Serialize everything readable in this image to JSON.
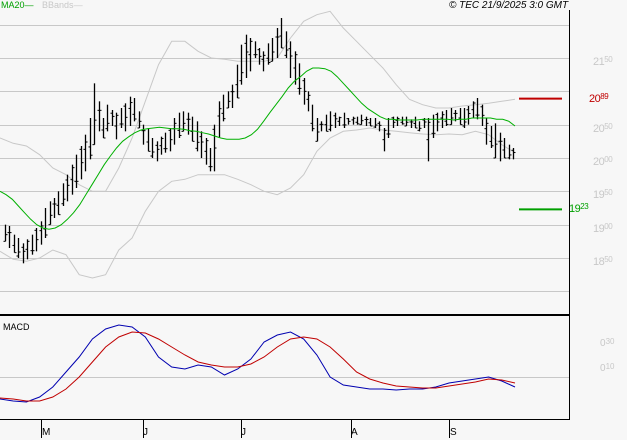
{
  "legend": {
    "ma_label": "MA20",
    "ma_dash": "—",
    "bb_label": "BBands",
    "bb_dash": "—"
  },
  "copyright": "© TEC 21/9/2025 3:0 GMT",
  "colors": {
    "ma": "#00b000",
    "bbands": "#c8c8c8",
    "bars": "#000000",
    "resistance": "#c00000",
    "support": "#00a000",
    "macd": "#0000b0",
    "signal": "#c00000",
    "grid": "#c8c8c8",
    "background": "#f7f7f7"
  },
  "price_axis": {
    "labels": [
      {
        "big": "21",
        "small": "50",
        "value": 2150
      },
      {
        "big": "20",
        "small": "50",
        "value": 2050
      },
      {
        "big": "20",
        "small": "00",
        "value": 2000
      },
      {
        "big": "19",
        "small": "50",
        "value": 1950
      },
      {
        "big": "19",
        "small": "00",
        "value": 1900
      },
      {
        "big": "18",
        "small": "50",
        "value": 1850
      }
    ]
  },
  "levels": {
    "resistance": {
      "big": "20",
      "small": "89",
      "value": 2089
    },
    "support": {
      "big": "19",
      "small": "23",
      "value": 1923
    }
  },
  "macd_panel": {
    "title": "MACD",
    "labels": [
      {
        "big": "0",
        "small": "30"
      },
      {
        "big": "0",
        "small": "10"
      }
    ]
  },
  "x_axis": {
    "months": [
      "M",
      "J",
      "J",
      "A",
      "S"
    ]
  },
  "chart_data": [
    {
      "type": "ohlc",
      "title": "",
      "series_names": [
        "Price",
        "MA20",
        "BBands"
      ],
      "ylim": [
        1800,
        2200
      ],
      "y_ticks": [
        1850,
        1900,
        1950,
        2000,
        2050,
        2100,
        2150
      ],
      "grid": true,
      "legend_position": "top-left",
      "x_ticks": [
        "M",
        "J",
        "J",
        "A",
        "S"
      ],
      "annotations": [
        {
          "label": "2089",
          "type": "resistance",
          "value": 2089
        },
        {
          "label": "1923",
          "type": "support",
          "value": 1923
        }
      ],
      "bars_high_low": [
        [
          1900,
          1875
        ],
        [
          1898,
          1865
        ],
        [
          1885,
          1858
        ],
        [
          1880,
          1850
        ],
        [
          1872,
          1842
        ],
        [
          1878,
          1848
        ],
        [
          1885,
          1855
        ],
        [
          1895,
          1860
        ],
        [
          1905,
          1870
        ],
        [
          1925,
          1880
        ],
        [
          1935,
          1900
        ],
        [
          1940,
          1910
        ],
        [
          1950,
          1915
        ],
        [
          1962,
          1928
        ],
        [
          1975,
          1935
        ],
        [
          1990,
          1945
        ],
        [
          2005,
          1955
        ],
        [
          2018,
          1968
        ],
        [
          2035,
          1980
        ],
        [
          2060,
          1998
        ],
        [
          2112,
          2020
        ],
        [
          2085,
          2040
        ],
        [
          2060,
          2030
        ],
        [
          2080,
          2040
        ],
        [
          2072,
          2048
        ],
        [
          2068,
          2028
        ],
        [
          2075,
          2045
        ],
        [
          2082,
          2040
        ],
        [
          2092,
          2048
        ],
        [
          2090,
          2055
        ],
        [
          2070,
          2045
        ],
        [
          2050,
          2020
        ],
        [
          2045,
          2010
        ],
        [
          2030,
          2000
        ],
        [
          2025,
          1995
        ],
        [
          2032,
          2005
        ],
        [
          2038,
          2008
        ],
        [
          2045,
          2010
        ],
        [
          2060,
          2020
        ],
        [
          2068,
          2030
        ],
        [
          2070,
          2040
        ],
        [
          2068,
          2035
        ],
        [
          2062,
          2025
        ],
        [
          2055,
          2010
        ],
        [
          2040,
          2000
        ],
        [
          2030,
          1990
        ],
        [
          2015,
          1980
        ],
        [
          2050,
          1980
        ],
        [
          2085,
          2030
        ],
        [
          2095,
          2055
        ],
        [
          2100,
          2075
        ],
        [
          2110,
          2075
        ],
        [
          2140,
          2090
        ],
        [
          2170,
          2110
        ],
        [
          2185,
          2120
        ],
        [
          2180,
          2130
        ],
        [
          2175,
          2150
        ],
        [
          2165,
          2140
        ],
        [
          2160,
          2130
        ],
        [
          2172,
          2140
        ],
        [
          2180,
          2145
        ],
        [
          2195,
          2150
        ],
        [
          2210,
          2165
        ],
        [
          2190,
          2150
        ],
        [
          2175,
          2120
        ],
        [
          2160,
          2110
        ],
        [
          2142,
          2095
        ],
        [
          2120,
          2080
        ],
        [
          2100,
          2070
        ],
        [
          2080,
          2040
        ],
        [
          2060,
          2025
        ],
        [
          2055,
          2040
        ],
        [
          2065,
          2040
        ],
        [
          2070,
          2040
        ],
        [
          2068,
          2045
        ],
        [
          2062,
          2048
        ],
        [
          2068,
          2045
        ],
        [
          2060,
          2050
        ],
        [
          2062,
          2050
        ],
        [
          2062,
          2050
        ],
        [
          2065,
          2050
        ],
        [
          2062,
          2048
        ],
        [
          2060,
          2048
        ],
        [
          2060,
          2045
        ],
        [
          2055,
          2040
        ],
        [
          2045,
          2010
        ],
        [
          2060,
          2030
        ],
        [
          2062,
          2045
        ],
        [
          2062,
          2048
        ],
        [
          2062,
          2050
        ],
        [
          2062,
          2048
        ],
        [
          2058,
          2045
        ],
        [
          2062,
          2045
        ],
        [
          2055,
          2040
        ],
        [
          2060,
          2045
        ],
        [
          2060,
          1995
        ],
        [
          2065,
          2030
        ],
        [
          2068,
          2040
        ],
        [
          2070,
          2045
        ],
        [
          2072,
          2048
        ],
        [
          2075,
          2050
        ],
        [
          2072,
          2055
        ],
        [
          2075,
          2050
        ],
        [
          2075,
          2045
        ],
        [
          2078,
          2050
        ],
        [
          2085,
          2060
        ],
        [
          2090,
          2058
        ],
        [
          2080,
          2048
        ],
        [
          2060,
          2020
        ],
        [
          2048,
          2015
        ],
        [
          2052,
          2000
        ],
        [
          2038,
          1995
        ],
        [
          2030,
          2000
        ],
        [
          2020,
          1998
        ],
        [
          2015,
          1998
        ]
      ],
      "ma20": [
        1950,
        1945,
        1938,
        1928,
        1918,
        1908,
        1900,
        1895,
        1893,
        1895,
        1900,
        1908,
        1918,
        1930,
        1945,
        1960,
        1975,
        1990,
        2003,
        2015,
        2025,
        2032,
        2038,
        2042,
        2044,
        2045,
        2046,
        2045,
        2044,
        2044,
        2043,
        2041,
        2040,
        2038,
        2036,
        2033,
        2030,
        2028,
        2028,
        2028,
        2030,
        2035,
        2043,
        2055,
        2068,
        2080,
        2092,
        2105,
        2115,
        2122,
        2130,
        2135,
        2135,
        2134,
        2130,
        2122,
        2112,
        2102,
        2092,
        2082,
        2074,
        2068,
        2062,
        2058,
        2058,
        2057,
        2057,
        2057,
        2057,
        2058,
        2058,
        2058,
        2058,
        2058,
        2057,
        2058,
        2058,
        2060,
        2060,
        2060,
        2060,
        2058,
        2058,
        2055,
        2048
      ],
      "bbands_upper": [
        2030,
        2022,
        2018,
        2005,
        1985,
        1975,
        1960,
        1950,
        1950,
        1985,
        2030,
        2085,
        2140,
        2175,
        2175,
        2160,
        2150,
        2148,
        2145,
        2145,
        2145,
        2150,
        2180,
        2205,
        2215,
        2220,
        2195,
        2175,
        2155,
        2135,
        2110,
        2088,
        2080,
        2075,
        2075,
        2078,
        2080,
        2082,
        2085,
        2088
      ],
      "bbands_lower": [
        1860,
        1848,
        1845,
        1850,
        1862,
        1855,
        1825,
        1820,
        1825,
        1862,
        1880,
        1920,
        1950,
        1965,
        1968,
        1975,
        1975,
        1975,
        1968,
        1960,
        1950,
        1945,
        1955,
        1975,
        2010,
        2030,
        2040,
        2042,
        2045,
        2042,
        2040,
        2038,
        2036,
        2035,
        2036,
        2035,
        2040,
        2035,
        2020,
        2008
      ]
    },
    {
      "type": "line",
      "title": "MACD",
      "x_ticks": [
        "M",
        "J",
        "J",
        "A",
        "S"
      ],
      "y_ticks": [
        0.3,
        0.1
      ],
      "grid": true,
      "series": [
        {
          "name": "MACD",
          "color": "#0000b0",
          "values": [
            -0.22,
            -0.24,
            -0.25,
            -0.2,
            -0.1,
            0.05,
            0.2,
            0.38,
            0.48,
            0.52,
            0.5,
            0.4,
            0.2,
            0.1,
            0.08,
            0.12,
            0.1,
            0.02,
            0.08,
            0.18,
            0.35,
            0.42,
            0.45,
            0.38,
            0.22,
            0.0,
            -0.08,
            -0.1,
            -0.12,
            -0.12,
            -0.13,
            -0.12,
            -0.12,
            -0.1,
            -0.06,
            -0.04,
            -0.02,
            0.0,
            -0.04,
            -0.1
          ]
        },
        {
          "name": "Signal",
          "color": "#c00000",
          "values": [
            -0.21,
            -0.22,
            -0.24,
            -0.24,
            -0.2,
            -0.12,
            0.0,
            0.15,
            0.3,
            0.4,
            0.45,
            0.44,
            0.38,
            0.3,
            0.22,
            0.15,
            0.12,
            0.1,
            0.1,
            0.13,
            0.2,
            0.3,
            0.38,
            0.4,
            0.38,
            0.3,
            0.18,
            0.05,
            -0.02,
            -0.06,
            -0.09,
            -0.1,
            -0.11,
            -0.11,
            -0.09,
            -0.07,
            -0.05,
            -0.02,
            -0.03,
            -0.06
          ]
        }
      ]
    }
  ]
}
